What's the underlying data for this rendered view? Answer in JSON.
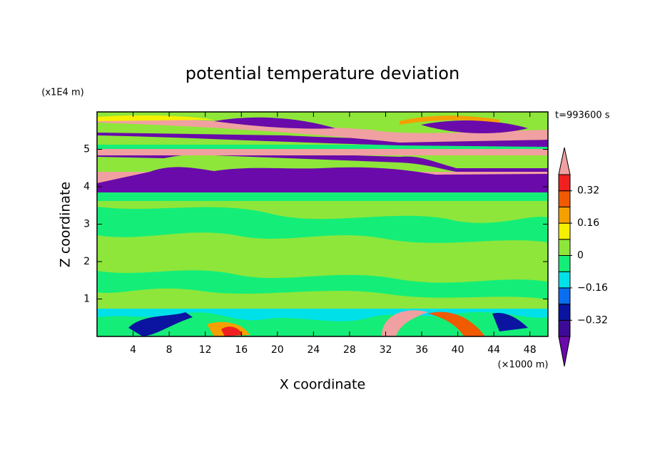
{
  "chart_data": {
    "type": "contour",
    "title": "potential temperature deviation",
    "x_label": "X coordinate",
    "y_label": "Z coordinate",
    "x_unit_label": "(×1000 m)",
    "y_unit_label": "(x1E4 m)",
    "annotation": "t=993600 s",
    "xlim": [
      0,
      50
    ],
    "xticks": [
      4,
      8,
      12,
      16,
      20,
      24,
      28,
      32,
      36,
      40,
      44,
      48
    ],
    "ylim": [
      0,
      6
    ],
    "yticks": [
      1,
      2,
      3,
      4,
      5
    ],
    "colorbar": {
      "clim": [
        -0.4,
        0.4
      ],
      "colors": [
        "#6a0aaa",
        "#3c0a96",
        "#0a14a0",
        "#0a6ef0",
        "#00e0e8",
        "#14ee78",
        "#8ee63a",
        "#f5f000",
        "#f5a000",
        "#f05a00",
        "#f02020",
        "#f0a0a0"
      ],
      "ticks": [
        {
          "value": 0.32,
          "label": "0.32"
        },
        {
          "value": 0.16,
          "label": "0.16"
        },
        0,
        {
          "value": -0.16,
          "label": "−0.16"
        },
        {
          "value": -0.32,
          "label": "−0.32"
        }
      ]
    }
  }
}
